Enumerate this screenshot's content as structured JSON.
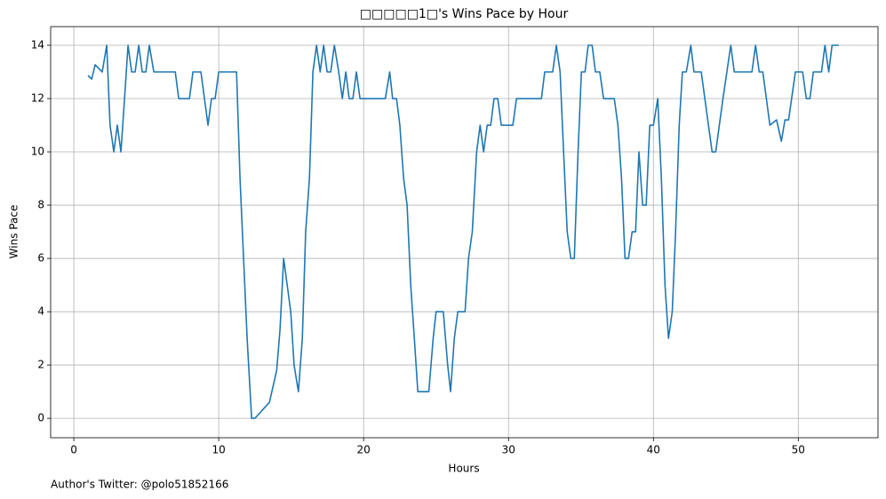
{
  "chart_data": {
    "type": "line",
    "title": "□□□□□1□'s Wins Pace by Hour",
    "x_label": "Hours",
    "y_label": "Wins Pace",
    "annotation": "Author's Twitter: @polo51852166",
    "xlim": [
      -1.6,
      55.5
    ],
    "ylim": [
      -0.73,
      14.7
    ],
    "xticks": [
      0,
      10,
      20,
      30,
      40,
      50
    ],
    "yticks": [
      0,
      2,
      4,
      6,
      8,
      10,
      12,
      14
    ],
    "grid": true,
    "x": [
      0.98,
      1.23,
      1.47,
      1.96,
      2.27,
      2.5,
      2.76,
      3.0,
      3.25,
      3.5,
      3.74,
      3.99,
      4.23,
      4.48,
      4.72,
      4.97,
      5.21,
      5.52,
      7.0,
      7.24,
      7.98,
      8.22,
      8.77,
      9.26,
      9.5,
      9.75,
      10.0,
      11.23,
      11.47,
      11.96,
      12.27,
      12.5,
      13.5,
      14.0,
      14.23,
      14.48,
      14.97,
      15.2,
      15.5,
      15.77,
      16.0,
      16.26,
      16.5,
      16.75,
      17.0,
      17.24,
      17.48,
      17.73,
      17.98,
      18.28,
      18.53,
      18.77,
      19.0,
      19.26,
      19.5,
      19.75,
      21.5,
      21.8,
      22.0,
      22.27,
      22.5,
      22.76,
      23.0,
      23.25,
      23.5,
      23.74,
      24.5,
      24.8,
      25.0,
      25.5,
      25.8,
      26.0,
      26.26,
      26.5,
      27.0,
      27.24,
      27.5,
      27.8,
      28.04,
      28.28,
      28.53,
      28.77,
      29.0,
      29.26,
      29.5,
      30.3,
      30.55,
      32.27,
      32.5,
      33.05,
      33.3,
      33.56,
      33.8,
      34.05,
      34.3,
      34.54,
      34.8,
      35.03,
      35.28,
      35.5,
      35.77,
      36.0,
      36.3,
      36.56,
      37.3,
      37.55,
      37.8,
      38.04,
      38.28,
      38.53,
      38.77,
      39.0,
      39.26,
      39.5,
      39.75,
      40.0,
      40.3,
      40.55,
      40.8,
      41.04,
      41.3,
      41.53,
      41.78,
      42.0,
      42.27,
      42.58,
      42.8,
      43.3,
      43.8,
      44.05,
      44.3,
      44.8,
      45.34,
      45.58,
      46.8,
      47.05,
      47.3,
      47.55,
      48.04,
      48.5,
      48.83,
      49.08,
      49.33,
      49.8,
      50.3,
      50.55,
      50.8,
      51.04,
      51.6,
      51.84,
      52.1,
      52.33,
      52.8
    ],
    "series": [
      {
        "name": "Wins Pace",
        "color": "#1f77b4",
        "values": [
          12.87,
          12.73,
          13.27,
          13,
          14,
          11,
          10,
          11,
          10,
          12,
          14,
          13,
          13,
          14,
          13,
          13,
          14,
          13,
          13,
          12,
          12,
          13,
          13,
          11,
          12,
          12,
          13,
          13,
          9,
          3,
          0,
          0,
          0.6,
          1.8,
          3.33,
          6,
          4,
          2,
          1,
          3,
          7,
          9,
          13,
          14,
          13,
          14,
          13,
          13,
          14,
          13,
          12,
          13,
          12,
          12,
          13,
          12,
          12,
          13,
          12,
          12,
          11,
          9,
          8,
          5,
          3,
          1,
          1,
          3,
          4,
          4,
          2,
          1,
          3,
          4,
          4,
          6,
          7,
          10,
          11,
          10,
          11,
          11,
          12,
          12,
          11,
          11,
          12,
          12,
          13,
          13,
          14,
          13,
          10,
          7,
          6,
          6,
          10,
          13,
          13,
          14,
          14,
          13,
          13,
          12,
          12,
          11,
          9,
          6,
          6,
          7,
          7,
          10,
          8,
          8,
          11,
          11,
          12,
          9,
          5,
          3,
          4,
          7,
          11,
          13,
          13,
          14,
          13,
          13,
          11,
          10,
          10,
          12,
          14,
          13,
          13,
          14,
          13,
          13,
          11,
          11.2,
          10.4,
          11.2,
          11.2,
          13,
          13,
          12,
          12,
          13,
          13,
          14,
          13,
          14,
          14
        ]
      }
    ]
  }
}
